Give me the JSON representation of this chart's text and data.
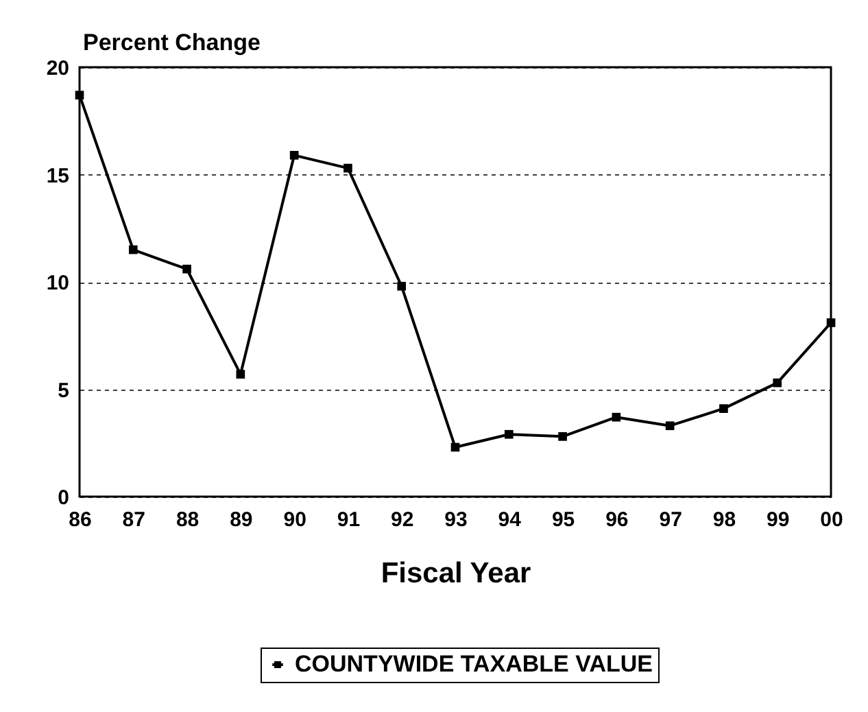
{
  "chart_data": {
    "type": "line",
    "ylabel": "Percent Change",
    "xlabel": "Fiscal Year",
    "categories": [
      "86",
      "87",
      "88",
      "89",
      "90",
      "91",
      "92",
      "93",
      "94",
      "95",
      "96",
      "97",
      "98",
      "99",
      "00"
    ],
    "series": [
      {
        "name": "COUNTYWIDE TAXABLE VALUE",
        "color": "#000000",
        "values": [
          18.7,
          11.5,
          10.6,
          5.7,
          15.9,
          15.3,
          9.8,
          2.3,
          2.9,
          2.8,
          3.7,
          3.3,
          4.1,
          5.3,
          8.1
        ]
      }
    ],
    "ylim": [
      0,
      20
    ],
    "yticks": [
      0,
      5,
      10,
      15,
      20
    ],
    "grid": "y",
    "legend": "bottom",
    "marker": "square",
    "line_style": "solid"
  }
}
